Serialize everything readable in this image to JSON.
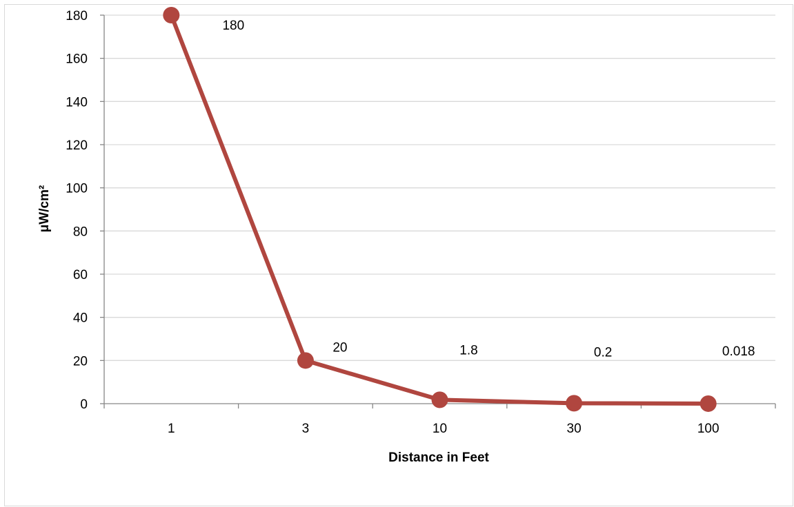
{
  "chart_data": {
    "type": "line",
    "categories": [
      "1",
      "3",
      "10",
      "30",
      "100"
    ],
    "series": [
      {
        "values": [
          180,
          20,
          1.8,
          0.2,
          0.018
        ]
      }
    ],
    "data_labels": [
      "180",
      "20",
      "1.8",
      "0.2",
      "0.018"
    ],
    "y_ticks": [
      "0",
      "20",
      "40",
      "60",
      "80",
      "100",
      "120",
      "140",
      "160",
      "180"
    ],
    "xlabel": "Distance in Feet",
    "ylabel": "μW/cm²",
    "ylim": [
      0,
      180
    ],
    "grid": true,
    "legend": "none",
    "colors": {
      "series": "#B0463F",
      "grid": "#d9d9d9",
      "axis": "#868686"
    }
  }
}
